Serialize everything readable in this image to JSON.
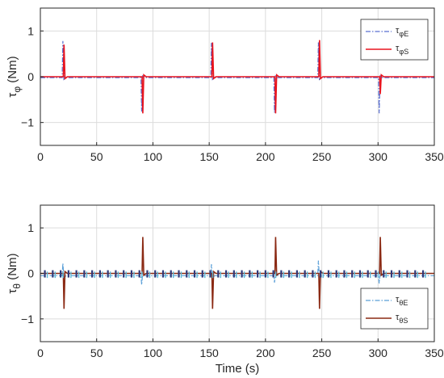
{
  "chart_data": [
    {
      "type": "line",
      "ylabel": "τ",
      "ylabel_sub": "φ",
      "ylabel_unit": " (Nm)",
      "xlabel": "",
      "xlim": [
        0,
        350
      ],
      "ylim": [
        -1.5,
        1.5
      ],
      "xticks": [
        "0",
        "50",
        "100",
        "150",
        "200",
        "250",
        "300",
        "350"
      ],
      "yticks": [
        "-1",
        "0",
        "1"
      ],
      "grid": true,
      "legend_position": "top-right",
      "series": [
        {
          "name": "τφE",
          "name_base": "τ",
          "name_sub": "φE",
          "color": "#5a6fd0",
          "style": "dashdot",
          "spikes": [
            [
              20,
              0.78
            ],
            [
              90,
              -0.76
            ],
            [
              152,
              0.74
            ],
            [
              208,
              -0.78
            ],
            [
              247,
              0.75
            ],
            [
              301,
              -0.8
            ]
          ],
          "baseline": -0.02
        },
        {
          "name": "τφS",
          "name_base": "τ",
          "name_sub": "φS",
          "color": "#e8141e",
          "style": "solid",
          "spikes": [
            [
              21,
              0.7
            ],
            [
              91,
              -0.8
            ],
            [
              153,
              0.75
            ],
            [
              209,
              -0.8
            ],
            [
              248,
              0.8
            ],
            [
              302,
              -0.38
            ]
          ],
          "baseline": 0.0
        }
      ]
    },
    {
      "type": "line",
      "ylabel": "τ",
      "ylabel_sub": "θ",
      "ylabel_unit": " (Nm)",
      "xlabel": "Time (s)",
      "xlim": [
        0,
        350
      ],
      "ylim": [
        -1.5,
        1.5
      ],
      "xticks": [
        "0",
        "50",
        "100",
        "150",
        "200",
        "250",
        "300",
        "350"
      ],
      "yticks": [
        "-1",
        "0",
        "1"
      ],
      "grid": true,
      "legend_position": "bottom-right",
      "series": [
        {
          "name": "τθE",
          "name_base": "τ",
          "name_sub": "θE",
          "color": "#5a9fd8",
          "style": "dashdot",
          "spikes": [
            [
              20,
              0.22
            ],
            [
              90,
              -0.25
            ],
            [
              152,
              0.2
            ],
            [
              208,
              -0.2
            ],
            [
              247,
              0.28
            ],
            [
              301,
              -0.22
            ]
          ],
          "baseline": -0.05
        },
        {
          "name": "τθS",
          "name_base": "τ",
          "name_sub": "θS",
          "color": "#8b2a14",
          "style": "solid",
          "spikes": [
            [
              21,
              -0.78
            ],
            [
              91,
              0.8
            ],
            [
              153,
              -0.78
            ],
            [
              209,
              0.8
            ],
            [
              248,
              -0.78
            ],
            [
              302,
              0.8
            ]
          ],
          "baseline": 0.0
        }
      ]
    }
  ]
}
